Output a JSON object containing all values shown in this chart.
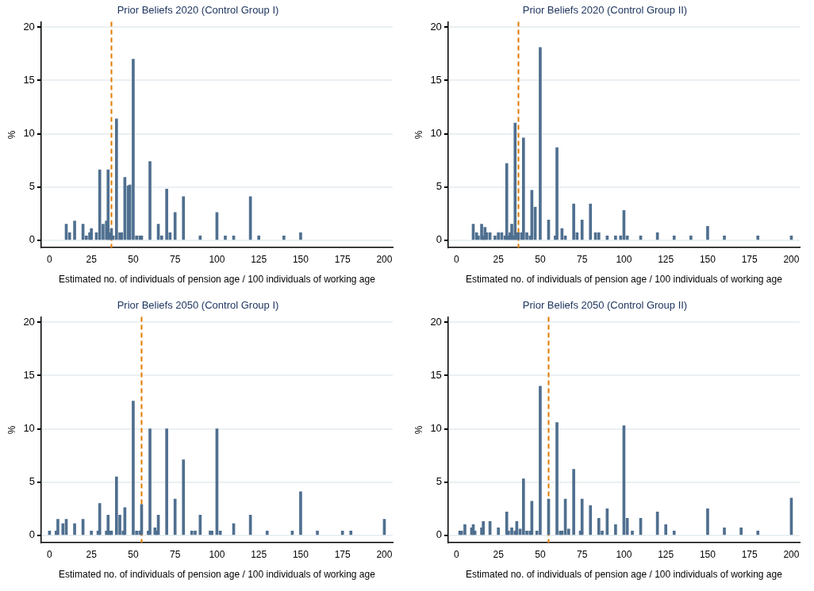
{
  "chart_data": [
    {
      "type": "bar",
      "title": "Prior Beliefs 2020 (Control Group I)",
      "xlabel": "Estimated no. of individuals of pension age / 100 individuals of working age",
      "ylabel": "%",
      "color": "#4f6f8f",
      "xlim": [
        -5,
        205
      ],
      "xticks": [
        0,
        25,
        50,
        75,
        100,
        125,
        150,
        175,
        200
      ],
      "ylim": [
        -0.7,
        20.5
      ],
      "yticks": [
        0,
        5,
        10,
        15,
        20
      ],
      "grid": "y",
      "x": [
        10,
        12,
        15,
        20,
        22,
        24,
        25,
        28,
        30,
        32,
        34,
        35,
        36,
        37,
        38,
        40,
        42,
        43,
        45,
        47,
        48,
        50,
        52,
        54,
        55,
        60,
        65,
        67,
        70,
        72,
        75,
        80,
        90,
        100,
        105,
        110,
        120,
        125,
        140,
        150
      ],
      "values": [
        1.5,
        0.7,
        1.8,
        1.5,
        0.4,
        0.7,
        1.1,
        0.7,
        6.6,
        1.5,
        1.8,
        6.6,
        0.7,
        1.1,
        0.4,
        11.4,
        0.7,
        0.7,
        5.9,
        5.1,
        5.2,
        17,
        0.4,
        0.4,
        0.4,
        7.4,
        1.5,
        0.4,
        4.8,
        0.7,
        2.6,
        4.1,
        0.4,
        2.6,
        0.4,
        0.4,
        4.1,
        0.4,
        0.4,
        0.7
      ],
      "ref_lines": [
        {
          "axis": "x",
          "value": 37,
          "color": "#e07b00",
          "line_style": "dashed"
        }
      ]
    },
    {
      "type": "bar",
      "title": "Prior Beliefs 2020 (Control Group II)",
      "xlabel": "Estimated no. of individuals of pension age / 100 individuals of working age",
      "ylabel": "%",
      "color": "#4f6f8f",
      "xlim": [
        -5,
        205
      ],
      "xticks": [
        0,
        25,
        50,
        75,
        100,
        125,
        150,
        175,
        200
      ],
      "ylim": [
        -0.7,
        20.5
      ],
      "yticks": [
        0,
        5,
        10,
        15,
        20
      ],
      "grid": "y",
      "x": [
        10,
        12,
        13,
        15,
        16,
        17,
        18,
        20,
        23,
        25,
        27,
        29,
        30,
        31,
        32,
        33,
        34,
        35,
        36,
        37,
        39,
        40,
        42,
        44,
        45,
        47,
        50,
        55,
        59,
        60,
        63,
        65,
        70,
        72,
        75,
        80,
        83,
        85,
        90,
        95,
        98,
        100,
        102,
        110,
        120,
        130,
        140,
        150,
        160,
        180,
        200
      ],
      "values": [
        1.5,
        0.7,
        0.4,
        1.5,
        0.4,
        1.2,
        0.7,
        0.7,
        0.4,
        0.7,
        0.7,
        0.4,
        7.2,
        0.4,
        0.7,
        1.5,
        0.4,
        11,
        0.7,
        0.7,
        0.7,
        9.6,
        0.7,
        0.4,
        4.7,
        3.1,
        18.1,
        1.9,
        0.4,
        8.7,
        1.1,
        0.4,
        3.4,
        0.7,
        1.9,
        3.4,
        0.7,
        0.7,
        0.4,
        0.4,
        0.4,
        2.8,
        0.4,
        0.4,
        0.7,
        0.4,
        0.4,
        1.3,
        0.4,
        0.4,
        0.4
      ],
      "ref_lines": [
        {
          "axis": "x",
          "value": 37,
          "color": "#e07b00",
          "line_style": "dashed"
        }
      ]
    },
    {
      "type": "bar",
      "title": "Prior Beliefs 2050 (Control Group I)",
      "xlabel": "Estimated no. of individuals of pension age / 100 individuals of working age",
      "ylabel": "%",
      "color": "#4f6f8f",
      "xlim": [
        -5,
        205
      ],
      "xticks": [
        0,
        25,
        50,
        75,
        100,
        125,
        150,
        175,
        200
      ],
      "ylim": [
        -0.7,
        20.5
      ],
      "yticks": [
        0,
        5,
        10,
        15,
        20
      ],
      "grid": "y",
      "x": [
        0,
        4,
        5,
        8,
        10,
        15,
        20,
        25,
        29,
        30,
        34,
        35,
        36,
        37,
        40,
        42,
        44,
        45,
        50,
        52,
        54,
        55,
        59,
        60,
        63,
        64,
        65,
        70,
        75,
        80,
        85,
        87,
        90,
        96,
        97,
        100,
        102,
        110,
        120,
        130,
        145,
        150,
        160,
        175,
        180,
        200
      ],
      "values": [
        0.4,
        0.4,
        1.5,
        1.1,
        1.5,
        1.1,
        1.5,
        0.4,
        0.4,
        3,
        0.4,
        1.9,
        0.4,
        0.4,
        5.5,
        1.9,
        0.4,
        2.6,
        12.6,
        0.4,
        0.4,
        2.9,
        0.4,
        10,
        0.7,
        0.4,
        1.9,
        10,
        3.4,
        7.1,
        0.4,
        0.4,
        1.9,
        0.4,
        0.4,
        10,
        0.4,
        1.1,
        1.9,
        0.4,
        0.4,
        4.1,
        0.4,
        0.4,
        0.4,
        1.5
      ],
      "ref_lines": [
        {
          "axis": "x",
          "value": 55,
          "color": "#e07b00",
          "line_style": "dashed"
        }
      ]
    },
    {
      "type": "bar",
      "title": "Prior Beliefs 2050 (Control Group II)",
      "xlabel": "Estimated no. of individuals of pension age / 100 individuals of working age",
      "ylabel": "%",
      "color": "#4f6f8f",
      "xlim": [
        -5,
        205
      ],
      "xticks": [
        0,
        25,
        50,
        75,
        100,
        125,
        150,
        175,
        200
      ],
      "ylim": [
        -0.7,
        20.5
      ],
      "yticks": [
        0,
        5,
        10,
        15,
        20
      ],
      "grid": "y",
      "x": [
        2,
        3,
        5,
        9,
        10,
        11,
        15,
        16,
        20,
        25,
        30,
        31,
        33,
        35,
        36,
        38,
        40,
        42,
        44,
        45,
        48,
        50,
        55,
        60,
        62,
        63,
        65,
        67,
        70,
        74,
        75,
        80,
        85,
        87,
        90,
        95,
        100,
        102,
        105,
        110,
        120,
        125,
        130,
        150,
        160,
        170,
        180,
        200
      ],
      "values": [
        0.4,
        0.4,
        1,
        0.7,
        1,
        0.4,
        0.7,
        1.3,
        1.3,
        0.7,
        2.2,
        0.4,
        0.7,
        0.4,
        1.3,
        0.6,
        5.3,
        0.4,
        0.4,
        3.2,
        0.4,
        14,
        3.4,
        10.6,
        0.4,
        0.4,
        3.4,
        0.6,
        6.2,
        0.4,
        3.4,
        2.8,
        1.6,
        0.4,
        2.5,
        1,
        10.3,
        1.6,
        0.4,
        1.6,
        2.2,
        1,
        0.4,
        2.5,
        0.7,
        0.7,
        0.4,
        3.5
      ],
      "ref_lines": [
        {
          "axis": "x",
          "value": 55,
          "color": "#e07b00",
          "line_style": "dashed"
        }
      ]
    }
  ]
}
